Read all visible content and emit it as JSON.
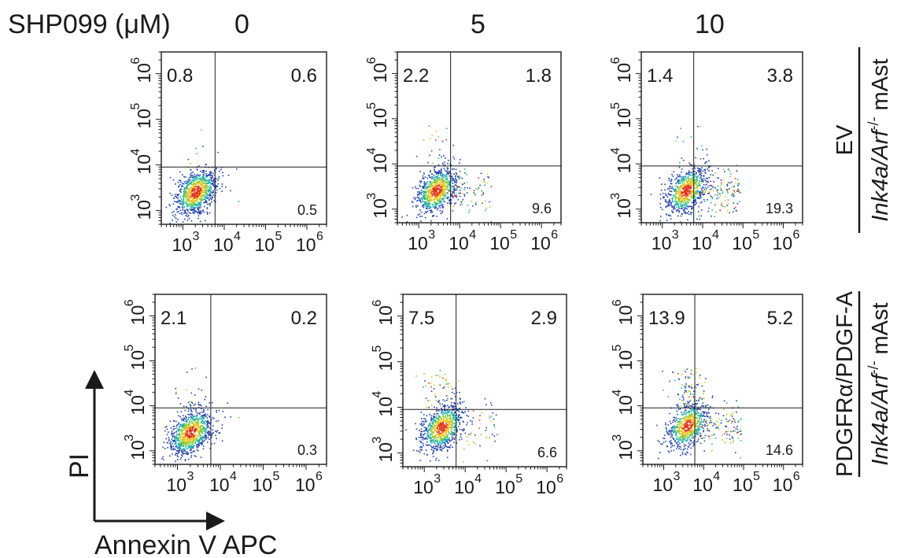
{
  "header": {
    "label": "SHP099 (μM)",
    "doses": [
      "0",
      "5",
      "10"
    ]
  },
  "axes": {
    "x_label": "Annexin V APC",
    "y_label": "PI"
  },
  "tick_base": "10",
  "tick_exponents": [
    "3",
    "4",
    "5",
    "6"
  ],
  "rows": [
    {
      "label_top": "EV",
      "label_bottom": "Ink4a/Arf",
      "label_sup": "-/-",
      "label_tail": " mAst"
    },
    {
      "label_top": "PDGFRα/PDGF-A",
      "label_bottom": "Ink4a/Arf",
      "label_sup": "-/-",
      "label_tail": " mAst"
    }
  ],
  "chart_data": [
    {
      "type": "scatter",
      "row": "EV",
      "dose": "0",
      "quadrants_percent": {
        "upper_left": "0.8",
        "upper_right": "0.6",
        "lower_right": "0.5"
      },
      "x_axis": {
        "scale": "log",
        "range": [
          300,
          3000000
        ],
        "ticks": [
          1000,
          10000,
          100000,
          1000000
        ]
      },
      "y_axis": {
        "scale": "log",
        "range": [
          500,
          3000000
        ],
        "ticks": [
          1000,
          10000,
          100000,
          1000000
        ]
      },
      "gates": {
        "x": 6000,
        "y": 9000
      }
    },
    {
      "type": "scatter",
      "row": "EV",
      "dose": "5",
      "quadrants_percent": {
        "upper_left": "2.2",
        "upper_right": "1.8",
        "lower_right": "9.6"
      },
      "x_axis": {
        "scale": "log",
        "range": [
          300,
          3000000
        ],
        "ticks": [
          1000,
          10000,
          100000,
          1000000
        ]
      },
      "y_axis": {
        "scale": "log",
        "range": [
          500,
          3000000
        ],
        "ticks": [
          1000,
          10000,
          100000,
          1000000
        ]
      },
      "gates": {
        "x": 6000,
        "y": 9000
      }
    },
    {
      "type": "scatter",
      "row": "EV",
      "dose": "10",
      "quadrants_percent": {
        "upper_left": "1.4",
        "upper_right": "3.8",
        "lower_right": "19.3"
      },
      "x_axis": {
        "scale": "log",
        "range": [
          300,
          3000000
        ],
        "ticks": [
          1000,
          10000,
          100000,
          1000000
        ]
      },
      "y_axis": {
        "scale": "log",
        "range": [
          500,
          3000000
        ],
        "ticks": [
          1000,
          10000,
          100000,
          1000000
        ]
      },
      "gates": {
        "x": 6000,
        "y": 9000
      }
    },
    {
      "type": "scatter",
      "row": "PDGFRα/PDGF-A",
      "dose": "0",
      "quadrants_percent": {
        "upper_left": "2.1",
        "upper_right": "0.2",
        "lower_right": "0.3"
      },
      "x_axis": {
        "scale": "log",
        "range": [
          300,
          3000000
        ],
        "ticks": [
          1000,
          10000,
          100000,
          1000000
        ]
      },
      "y_axis": {
        "scale": "log",
        "range": [
          500,
          3000000
        ],
        "ticks": [
          1000,
          10000,
          100000,
          1000000
        ]
      },
      "gates": {
        "x": 6000,
        "y": 9000
      }
    },
    {
      "type": "scatter",
      "row": "PDGFRα/PDGF-A",
      "dose": "5",
      "quadrants_percent": {
        "upper_left": "7.5",
        "upper_right": "2.9",
        "lower_right": "6.6"
      },
      "x_axis": {
        "scale": "log",
        "range": [
          300,
          3000000
        ],
        "ticks": [
          1000,
          10000,
          100000,
          1000000
        ]
      },
      "y_axis": {
        "scale": "log",
        "range": [
          500,
          3000000
        ],
        "ticks": [
          1000,
          10000,
          100000,
          1000000
        ]
      },
      "gates": {
        "x": 6000,
        "y": 9000
      }
    },
    {
      "type": "scatter",
      "row": "PDGFRα/PDGF-A",
      "dose": "10",
      "quadrants_percent": {
        "upper_left": "13.9",
        "upper_right": "5.2",
        "lower_right": "14.6"
      },
      "x_axis": {
        "scale": "log",
        "range": [
          300,
          3000000
        ],
        "ticks": [
          1000,
          10000,
          100000,
          1000000
        ]
      },
      "y_axis": {
        "scale": "log",
        "range": [
          500,
          3000000
        ],
        "ticks": [
          1000,
          10000,
          100000,
          1000000
        ]
      },
      "gates": {
        "x": 6000,
        "y": 9000
      }
    }
  ],
  "colors": {
    "frame": "#1a1a1a",
    "density_low": "#1f3fb0",
    "density_mid": "#19b4a8",
    "density_high1": "#8ccc2e",
    "density_high2": "#f2c21a",
    "density_peak": "#e2361c"
  }
}
